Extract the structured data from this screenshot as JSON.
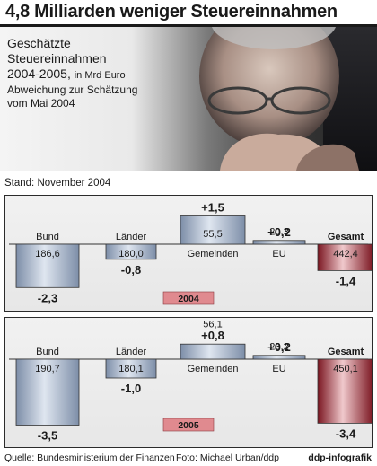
{
  "headline": "4,8 Milliarden weniger Steuereinnahmen",
  "subtitle": {
    "line1": "Geschätzte",
    "line2": "Steuereinnahmen",
    "line3": "2004-2005,",
    "unit": "in Mrd Euro",
    "line4": "Abweichung zur Schätzung",
    "line5": "vom Mai 2004"
  },
  "stand": "Stand: November 2004",
  "footer": {
    "source": "Quelle: Bundesministerium der Finanzen",
    "photo": "Foto: Michael Urban/ddp",
    "brand": "ddp-infografik"
  },
  "colors": {
    "bar_blue": "#a9b8cc",
    "bar_red": "#b0262f",
    "year_badge": "#e08a8f"
  },
  "chart_data": [
    {
      "type": "bar",
      "year_label": "2004",
      "categories": [
        "Bund",
        "Länder",
        "Gemeinden",
        "EU",
        "Gesamt"
      ],
      "estimates": [
        "186,6",
        "180,0",
        "55,5",
        "20,3",
        "442,4"
      ],
      "deviation_labels": [
        "-2,3",
        "-0,8",
        "+1,5",
        "+0,2",
        "-1,4"
      ],
      "values": [
        -2.3,
        -0.8,
        1.5,
        0.2,
        -1.4
      ]
    },
    {
      "type": "bar",
      "year_label": "2005",
      "categories": [
        "Bund",
        "Länder",
        "Gemeinden",
        "EU",
        "Gesamt"
      ],
      "estimates": [
        "190,7",
        "180,1",
        "56,1",
        "23,2",
        "450,1"
      ],
      "deviation_labels": [
        "-3,5",
        "-1,0",
        "+0,8",
        "+0,2",
        "-3,4"
      ],
      "values": [
        -3.5,
        -1.0,
        0.8,
        0.2,
        -3.4
      ]
    }
  ]
}
